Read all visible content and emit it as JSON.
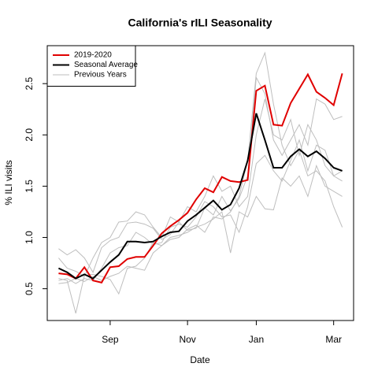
{
  "chart_data": {
    "type": "line",
    "title": "California's rILI Seasonality",
    "x_label": "Date",
    "y_label": "% ILI visits",
    "categories": [
      null,
      null,
      null,
      null,
      null,
      null,
      "Sep",
      null,
      null,
      null,
      null,
      null,
      null,
      null,
      null,
      "Nov",
      null,
      null,
      null,
      null,
      null,
      null,
      null,
      "Jan",
      null,
      null,
      null,
      null,
      null,
      null,
      null,
      null,
      "Mar",
      null
    ],
    "ylim": [
      0.19,
      2.87
    ],
    "yticks": [
      0.5,
      {
        "value": 1,
        "label": "1.0"
      },
      1.5,
      {
        "value": 2,
        "label": "2.0"
      },
      2.5
    ],
    "legend": "top-left",
    "series": [
      {
        "name": "2019-2020",
        "color": "#e00000",
        "width": 2,
        "values": [
          0.65,
          0.64,
          0.6,
          0.71,
          0.58,
          0.56,
          0.71,
          0.72,
          0.79,
          0.81,
          0.81,
          0.92,
          1.04,
          1.11,
          1.17,
          1.24,
          1.37,
          1.48,
          1.44,
          1.59,
          1.55,
          1.54,
          1.56,
          2.43,
          2.48,
          2.1,
          2.09,
          2.31,
          2.45,
          2.59,
          2.42,
          2.36,
          2.29,
          2.6
        ]
      },
      {
        "name": "Seasonal Average",
        "color": "#000000",
        "width": 2,
        "values": [
          0.7,
          0.66,
          0.6,
          0.64,
          0.6,
          0.68,
          0.76,
          0.83,
          0.96,
          0.96,
          0.95,
          0.96,
          1.01,
          1.05,
          1.06,
          1.16,
          1.22,
          1.29,
          1.36,
          1.27,
          1.32,
          1.48,
          1.75,
          2.21,
          1.95,
          1.68,
          1.68,
          1.79,
          1.86,
          1.79,
          1.84,
          1.77,
          1.68,
          1.65
        ]
      },
      {
        "name": "Previous Years",
        "color": "#bebebe",
        "width": 1,
        "values": [
          [
            0.89,
            0.83,
            0.88,
            0.8,
            0.66,
            0.9,
            0.97,
            1.0,
            1.14,
            1.15,
            1.13,
            1.09,
            0.98,
            1.03,
            1.15,
            1.07,
            1.09,
            1.29,
            1.22,
            1.4,
            1.26,
            1.38,
            1.6,
            2.56,
            2.4,
            1.95,
            1.8,
            1.95,
            2.1,
            1.9,
            2.35,
            2.3,
            2.15,
            2.18
          ],
          [
            0.55,
            0.56,
            0.6,
            0.57,
            0.62,
            0.58,
            0.62,
            0.65,
            0.72,
            0.7,
            0.68,
            0.85,
            0.92,
            0.98,
            1.0,
            1.08,
            1.12,
            1.05,
            1.2,
            1.18,
            1.25,
            1.4,
            1.75,
            2.6,
            2.8,
            2.3,
            1.9,
            1.7,
            1.85,
            1.6,
            1.65,
            1.55,
            1.3,
            1.1
          ],
          [
            0.6,
            0.58,
            0.26,
            0.63,
            0.64,
            0.62,
            0.59,
            0.45,
            0.7,
            0.72,
            0.8,
            0.95,
            0.92,
            1.0,
            1.02,
            1.05,
            1.1,
            1.13,
            1.18,
            1.25,
            0.85,
            1.25,
            1.2,
            1.4,
            1.28,
            1.27,
            1.58,
            1.5,
            1.6,
            1.4,
            1.7,
            1.5,
            1.45,
            1.4
          ],
          [
            0.8,
            0.7,
            0.67,
            0.62,
            0.8,
            0.95,
            1.0,
            1.15,
            1.16,
            1.25,
            1.22,
            1.1,
            1.0,
            1.2,
            1.15,
            1.3,
            1.25,
            1.4,
            1.6,
            1.45,
            1.5,
            1.3,
            1.4,
            2.0,
            2.35,
            2.0,
            1.95,
            2.15,
            1.8,
            2.1,
            1.95,
            1.7,
            1.6,
            1.55
          ],
          [
            0.58,
            0.6,
            0.55,
            0.6,
            0.58,
            0.7,
            0.85,
            0.9,
            0.92,
            1.05,
            1.0,
            0.93,
            0.95,
            1.1,
            1.13,
            1.1,
            1.2,
            1.35,
            1.3,
            1.2,
            1.22,
            1.05,
            1.3,
            1.72,
            1.8,
            1.65,
            1.55,
            1.75,
            1.95,
            1.65,
            1.9,
            1.85,
            1.6,
            1.65
          ]
        ]
      }
    ]
  }
}
